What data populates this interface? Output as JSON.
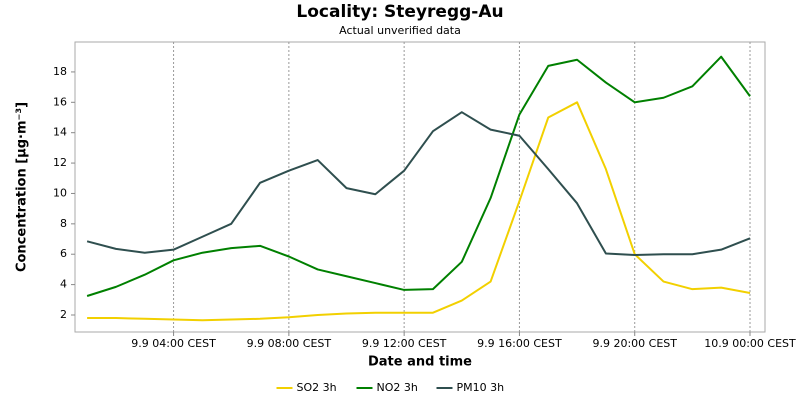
{
  "chart_data": {
    "type": "line",
    "title": "Locality: Steyregg-Au",
    "subtitle": "Actual unverified data",
    "x_label": "Date and time",
    "y_label": "Concentration [µg·m⁻³]",
    "x": [
      1,
      2,
      3,
      4,
      5,
      6,
      7,
      8,
      9,
      10,
      11,
      12,
      13,
      14,
      15,
      16,
      17,
      18,
      19,
      20,
      21,
      22,
      23,
      24
    ],
    "series": [
      {
        "name": "SO2 3h",
        "color": "#f2d000",
        "values": [
          1.8,
          1.8,
          1.75,
          1.7,
          1.65,
          1.7,
          1.75,
          1.85,
          2.0,
          2.1,
          2.15,
          2.15,
          2.15,
          2.95,
          4.2,
          9.5,
          15.0,
          16.0,
          11.6,
          6.0,
          4.2,
          3.7,
          3.8,
          3.45
        ]
      },
      {
        "name": "NO2 3h",
        "color": "#008000",
        "values": [
          3.25,
          3.85,
          4.65,
          5.6,
          6.1,
          6.4,
          6.55,
          5.85,
          5.0,
          4.55,
          4.1,
          3.65,
          3.7,
          5.5,
          9.7,
          15.2,
          18.4,
          18.8,
          17.3,
          16.0,
          16.3,
          17.05,
          19.0,
          16.4
        ]
      },
      {
        "name": "PM10 3h",
        "color": "#2f4f4f",
        "values": [
          6.85,
          6.35,
          6.1,
          6.3,
          7.15,
          8.0,
          10.7,
          11.5,
          12.2,
          10.35,
          9.95,
          11.5,
          14.1,
          15.35,
          14.2,
          13.8,
          11.6,
          9.35,
          6.05,
          5.95,
          6.0,
          6.0,
          6.3,
          7.05
        ]
      }
    ],
    "xlim": [
      0.58,
      24.52
    ],
    "xticks": [
      {
        "value": 4,
        "label": "9.9 04:00 CEST"
      },
      {
        "value": 8,
        "label": "9.9 08:00 CEST"
      },
      {
        "value": 12,
        "label": "9.9 12:00 CEST"
      },
      {
        "value": 16,
        "label": "9.9 16:00 CEST"
      },
      {
        "value": 20,
        "label": "9.9 20:00 CEST"
      },
      {
        "value": 24,
        "label": "10.9 00:00 CEST"
      }
    ],
    "ylim": [
      0.88,
      19.97
    ],
    "yticks": [
      2,
      4,
      6,
      8,
      10,
      12,
      14,
      16,
      18
    ],
    "grid": "x",
    "legend": "bottom"
  }
}
